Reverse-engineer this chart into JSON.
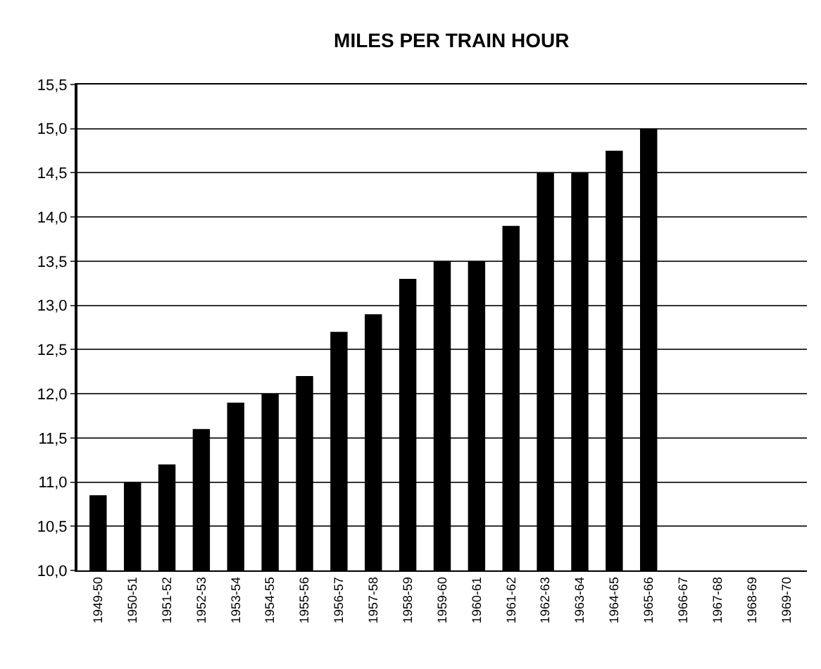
{
  "chart_data": {
    "type": "bar",
    "title": "MILES PER TRAIN HOUR",
    "categories": [
      "1949-50",
      "1950-51",
      "1951-52",
      "1952-53",
      "1953-54",
      "1954-55",
      "1955-56",
      "1956-57",
      "1957-58",
      "1958-59",
      "1959-60",
      "1960-61",
      "1961-62",
      "1962-63",
      "1963-64",
      "1964-65",
      "1965-66",
      "1966-67",
      "1967-68",
      "1968-69",
      "1969-70"
    ],
    "values": [
      10.85,
      11.0,
      11.2,
      11.6,
      11.9,
      12.0,
      12.2,
      12.7,
      12.9,
      13.3,
      13.5,
      13.5,
      13.9,
      14.5,
      14.5,
      14.75,
      15.0,
      null,
      null,
      null,
      null
    ],
    "color": "#000000",
    "ylim": [
      10.0,
      15.5
    ],
    "yticks": [
      {
        "value": 10.0,
        "label": "10,0"
      },
      {
        "value": 10.5,
        "label": "10,5"
      },
      {
        "value": 11.0,
        "label": "11,0"
      },
      {
        "value": 11.5,
        "label": "11,5"
      },
      {
        "value": 12.0,
        "label": "12,0"
      },
      {
        "value": 12.5,
        "label": "12,5"
      },
      {
        "value": 13.0,
        "label": "13,0"
      },
      {
        "value": 13.5,
        "label": "13,5"
      },
      {
        "value": 14.0,
        "label": "14,0"
      },
      {
        "value": 14.5,
        "label": "14,5"
      },
      {
        "value": 15.0,
        "label": "15,0"
      },
      {
        "value": 15.5,
        "label": "15,5"
      }
    ],
    "grid": "y"
  }
}
